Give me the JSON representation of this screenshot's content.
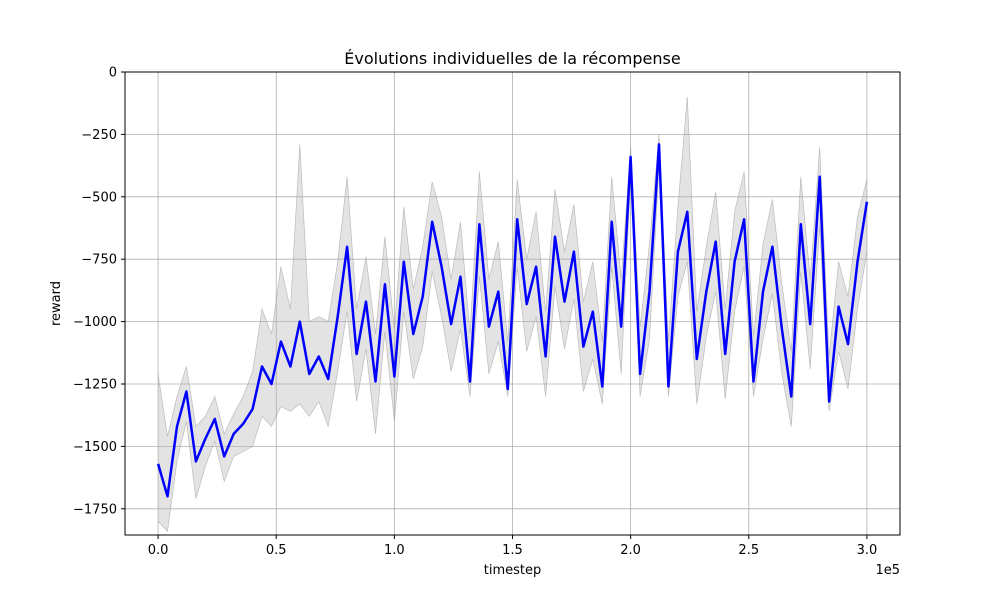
{
  "chart_data": {
    "type": "line",
    "title": "Évolutions individuelles de la récompense",
    "xlabel": "timestep",
    "ylabel": "reward",
    "x_offset_label": "1e5",
    "xlim": [
      -14000,
      314000
    ],
    "ylim": [
      -1855,
      0
    ],
    "x_ticks": [
      0,
      50000,
      100000,
      150000,
      200000,
      250000,
      300000
    ],
    "x_tick_labels": [
      "0.0",
      "0.5",
      "1.0",
      "1.5",
      "2.0",
      "2.5",
      "3.0"
    ],
    "y_ticks": [
      0,
      -250,
      -500,
      -750,
      -1000,
      -1250,
      -1500,
      -1750
    ],
    "y_tick_labels": [
      "0",
      "−250",
      "−500",
      "−750",
      "−1000",
      "−1250",
      "−1500",
      "−1750"
    ],
    "grid": true,
    "colors": {
      "mean": "#0000ff",
      "band": "#b0b0b0",
      "grid": "#b0b0b0"
    },
    "series": [
      {
        "role": "mean",
        "x": [
          0,
          4000,
          8000,
          12000,
          16000,
          20000,
          24000,
          28000,
          32000,
          36000,
          40000,
          44000,
          48000,
          52000,
          56000,
          60000,
          64000,
          68000,
          72000,
          76000,
          80000,
          84000,
          88000,
          92000,
          96000,
          100000,
          104000,
          108000,
          112000,
          116000,
          120000,
          124000,
          128000,
          132000,
          136000,
          140000,
          144000,
          148000,
          152000,
          156000,
          160000,
          164000,
          168000,
          172000,
          176000,
          180000,
          184000,
          188000,
          192000,
          196000,
          200000,
          204000,
          208000,
          212000,
          216000,
          220000,
          224000,
          228000,
          232000,
          236000,
          240000,
          244000,
          248000,
          252000,
          256000,
          260000,
          264000,
          268000,
          272000,
          276000,
          280000,
          284000,
          288000,
          292000,
          296000,
          300000
        ],
        "values": [
          -1570,
          -1700,
          -1420,
          -1280,
          -1560,
          -1470,
          -1390,
          -1540,
          -1450,
          -1410,
          -1350,
          -1180,
          -1250,
          -1080,
          -1180,
          -1000,
          -1210,
          -1140,
          -1230,
          -980,
          -700,
          -1130,
          -920,
          -1240,
          -850,
          -1220,
          -760,
          -1050,
          -900,
          -600,
          -780,
          -1010,
          -820,
          -1240,
          -610,
          -1020,
          -880,
          -1270,
          -590,
          -930,
          -780,
          -1140,
          -660,
          -920,
          -720,
          -1100,
          -960,
          -1260,
          -600,
          -1020,
          -340,
          -1210,
          -880,
          -290,
          -1260,
          -720,
          -560,
          -1150,
          -880,
          -680,
          -1130,
          -760,
          -590,
          -1240,
          -880,
          -700,
          -1030,
          -1300,
          -610,
          -1010,
          -420,
          -1320,
          -940,
          -1090,
          -760,
          -520
        ]
      },
      {
        "role": "band-upper",
        "x": [
          0,
          4000,
          8000,
          12000,
          16000,
          20000,
          24000,
          28000,
          32000,
          36000,
          40000,
          44000,
          48000,
          52000,
          56000,
          60000,
          64000,
          68000,
          72000,
          76000,
          80000,
          84000,
          88000,
          92000,
          96000,
          100000,
          104000,
          108000,
          112000,
          116000,
          120000,
          124000,
          128000,
          132000,
          136000,
          140000,
          144000,
          148000,
          152000,
          156000,
          160000,
          164000,
          168000,
          172000,
          176000,
          180000,
          184000,
          188000,
          192000,
          196000,
          200000,
          204000,
          208000,
          212000,
          216000,
          220000,
          224000,
          228000,
          232000,
          236000,
          240000,
          244000,
          248000,
          252000,
          256000,
          260000,
          264000,
          268000,
          272000,
          276000,
          280000,
          284000,
          288000,
          292000,
          296000,
          300000
        ],
        "values": [
          -1210,
          -1460,
          -1300,
          -1180,
          -1420,
          -1380,
          -1300,
          -1450,
          -1370,
          -1300,
          -1200,
          -950,
          -1050,
          -780,
          -950,
          -290,
          -1000,
          -980,
          -1000,
          -760,
          -420,
          -950,
          -740,
          -1050,
          -660,
          -1030,
          -540,
          -870,
          -700,
          -440,
          -580,
          -830,
          -600,
          -1050,
          -400,
          -830,
          -680,
          -1080,
          -430,
          -750,
          -560,
          -960,
          -470,
          -720,
          -530,
          -920,
          -760,
          -1080,
          -420,
          -830,
          -300,
          -1020,
          -690,
          -250,
          -1080,
          -540,
          -100,
          -960,
          -700,
          -480,
          -950,
          -560,
          -400,
          -1060,
          -690,
          -510,
          -850,
          -1120,
          -420,
          -830,
          -300,
          -1140,
          -760,
          -900,
          -580,
          -430
        ]
      },
      {
        "role": "band-lower",
        "x": [
          0,
          4000,
          8000,
          12000,
          16000,
          20000,
          24000,
          28000,
          32000,
          36000,
          40000,
          44000,
          48000,
          52000,
          56000,
          60000,
          64000,
          68000,
          72000,
          76000,
          80000,
          84000,
          88000,
          92000,
          96000,
          100000,
          104000,
          108000,
          112000,
          116000,
          120000,
          124000,
          128000,
          132000,
          136000,
          140000,
          144000,
          148000,
          152000,
          156000,
          160000,
          164000,
          168000,
          172000,
          176000,
          180000,
          184000,
          188000,
          192000,
          196000,
          200000,
          204000,
          208000,
          212000,
          216000,
          220000,
          224000,
          228000,
          232000,
          236000,
          240000,
          244000,
          248000,
          252000,
          256000,
          260000,
          264000,
          268000,
          272000,
          276000,
          280000,
          284000,
          288000,
          292000,
          296000,
          300000
        ],
        "values": [
          -1800,
          -1840,
          -1560,
          -1400,
          -1710,
          -1580,
          -1480,
          -1640,
          -1540,
          -1520,
          -1500,
          -1380,
          -1420,
          -1340,
          -1360,
          -1330,
          -1380,
          -1320,
          -1420,
          -1200,
          -960,
          -1320,
          -1110,
          -1450,
          -1040,
          -1400,
          -960,
          -1230,
          -1100,
          -800,
          -980,
          -1200,
          -1030,
          -1300,
          -820,
          -1210,
          -1080,
          -1300,
          -780,
          -1120,
          -980,
          -1300,
          -860,
          -1110,
          -910,
          -1280,
          -1150,
          -1330,
          -780,
          -1210,
          -420,
          -1300,
          -1070,
          -380,
          -1300,
          -900,
          -760,
          -1330,
          -1060,
          -880,
          -1310,
          -960,
          -780,
          -1300,
          -1070,
          -890,
          -1210,
          -1420,
          -800,
          -1190,
          -620,
          -1360,
          -1120,
          -1270,
          -950,
          -720
        ]
      }
    ]
  }
}
